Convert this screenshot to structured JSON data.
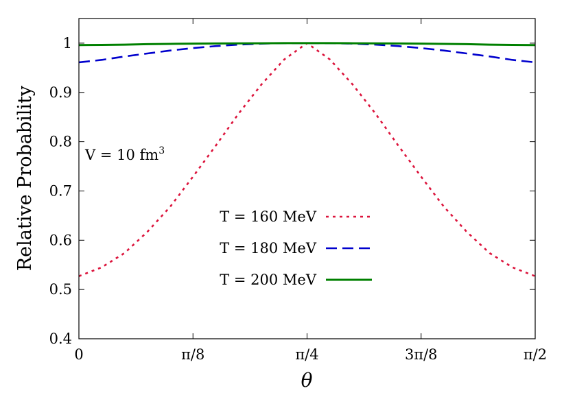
{
  "chart_data": {
    "type": "line",
    "title": "",
    "xlabel": "θ",
    "ylabel": "Relative Probability",
    "xlim": [
      0,
      1.5707963
    ],
    "ylim": [
      0.4,
      1.05
    ],
    "grid": false,
    "legend_position": "center",
    "x_ticks": [
      {
        "value": 0,
        "label": "0"
      },
      {
        "value": 0.3926991,
        "label": "π/8"
      },
      {
        "value": 0.7853982,
        "label": "π/4"
      },
      {
        "value": 1.1780972,
        "label": "3π/8"
      },
      {
        "value": 1.5707963,
        "label": "π/2"
      }
    ],
    "y_ticks": [
      {
        "value": 0.4,
        "label": "0.4"
      },
      {
        "value": 0.5,
        "label": "0.5"
      },
      {
        "value": 0.6,
        "label": "0.6"
      },
      {
        "value": 0.7,
        "label": "0.7"
      },
      {
        "value": 0.8,
        "label": "0.8"
      },
      {
        "value": 0.9,
        "label": "0.9"
      },
      {
        "value": 1.0,
        "label": "1"
      }
    ],
    "annotation": {
      "text": "V = 10 fm",
      "superscript": "3"
    },
    "x": [
      0,
      0.0785,
      0.1571,
      0.2356,
      0.3142,
      0.3927,
      0.4712,
      0.5498,
      0.6283,
      0.7069,
      0.7854,
      0.8639,
      0.9425,
      1.021,
      1.0996,
      1.1781,
      1.2566,
      1.3352,
      1.4137,
      1.4923,
      1.5708
    ],
    "series": [
      {
        "name": "T = 160 MeV",
        "color": "#dc143c",
        "dash": "dotted",
        "values": [
          0.527,
          0.545,
          0.574,
          0.617,
          0.668,
          0.729,
          0.792,
          0.857,
          0.916,
          0.967,
          1.0,
          0.967,
          0.916,
          0.857,
          0.792,
          0.729,
          0.668,
          0.617,
          0.574,
          0.545,
          0.527
        ]
      },
      {
        "name": "T = 180 MeV",
        "color": "#0000cd",
        "dash": "dashed",
        "values": [
          0.961,
          0.966,
          0.973,
          0.979,
          0.985,
          0.99,
          0.994,
          0.997,
          0.999,
          1.0,
          1.0,
          1.0,
          0.999,
          0.997,
          0.994,
          0.99,
          0.985,
          0.979,
          0.973,
          0.966,
          0.961
        ]
      },
      {
        "name": "T = 200 MeV",
        "color": "#008000",
        "dash": "solid",
        "values": [
          0.996,
          0.9965,
          0.997,
          0.998,
          0.9985,
          0.999,
          0.9993,
          0.9996,
          0.9998,
          1.0,
          1.0,
          1.0,
          0.9998,
          0.9996,
          0.9993,
          0.999,
          0.9985,
          0.998,
          0.997,
          0.9965,
          0.996
        ]
      }
    ]
  }
}
